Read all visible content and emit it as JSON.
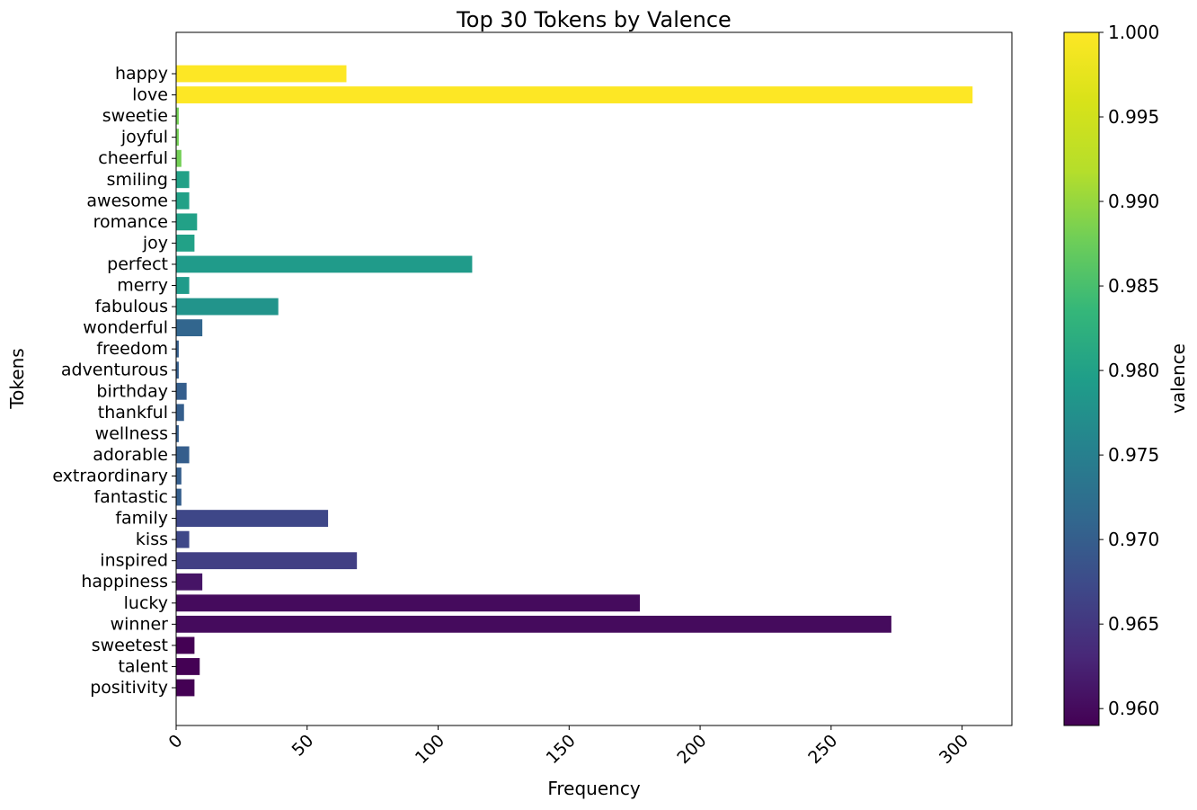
{
  "chart_data": {
    "type": "bar",
    "orientation": "horizontal",
    "title": "Top 30 Tokens by Valence",
    "xlabel": "Frequency",
    "ylabel": "Tokens",
    "xlim": [
      0,
      319
    ],
    "xticks": [
      0,
      50,
      100,
      150,
      200,
      250,
      300
    ],
    "grid": false,
    "categories": [
      "happy",
      "love",
      "sweetie",
      "joyful",
      "cheerful",
      "smiling",
      "awesome",
      "romance",
      "joy",
      "perfect",
      "merry",
      "fabulous",
      "wonderful",
      "freedom",
      "adventurous",
      "birthday",
      "thankful",
      "wellness",
      "adorable",
      "extraordinary",
      "fantastic",
      "family",
      "kiss",
      "inspired",
      "happiness",
      "lucky",
      "winner",
      "sweetest",
      "talent",
      "positivity"
    ],
    "values": [
      65,
      304,
      1,
      1,
      2,
      5,
      5,
      8,
      7,
      113,
      5,
      39,
      10,
      1,
      1,
      4,
      3,
      1,
      5,
      2,
      2,
      58,
      5,
      69,
      10,
      177,
      273,
      7,
      9,
      7
    ],
    "valence": [
      1.0,
      1.0,
      0.988,
      0.988,
      0.988,
      0.98,
      0.98,
      0.98,
      0.98,
      0.979,
      0.979,
      0.978,
      0.971,
      0.97,
      0.97,
      0.97,
      0.97,
      0.97,
      0.97,
      0.97,
      0.97,
      0.967,
      0.967,
      0.966,
      0.961,
      0.96,
      0.96,
      0.959,
      0.959,
      0.959
    ],
    "colorbar": {
      "label": "valence",
      "min": 0.959,
      "max": 1.0,
      "ticks": [
        "1.000",
        "0.995",
        "0.990",
        "0.985",
        "0.980",
        "0.975",
        "0.970",
        "0.965",
        "0.960"
      ],
      "colormap": "viridis"
    }
  }
}
